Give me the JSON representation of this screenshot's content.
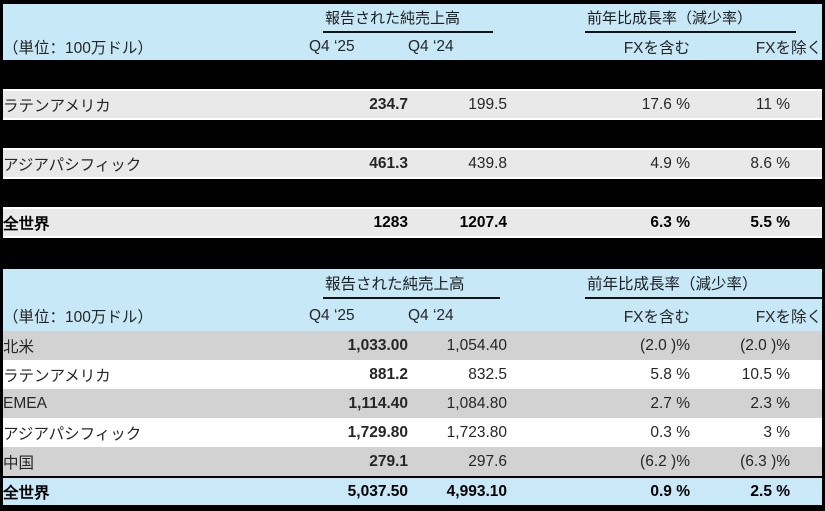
{
  "colors": {
    "background": "#000000",
    "header_bg": "#c6e8f7",
    "table1_row_bg": "#e9e9e9",
    "table2_row_gray": "#d2d2d2",
    "table2_row_white": "#ffffff",
    "total_row_bg": "#c9e9f8",
    "text_normal": "#262626",
    "text_bold": "#000000"
  },
  "table1": {
    "unit_label": "（単位：100万ドル）",
    "sales_group_label": "報告された純売上高",
    "growth_group_label": "前年比成長率（減少率）",
    "columns": {
      "q4_25": "Q4 ‘25",
      "q4_24": "Q4 ‘24",
      "fx_incl": "FXを含む",
      "fx_excl": "FXを除く"
    },
    "rows": [
      {
        "label": "ラテンアメリカ",
        "q4_25": "234.7",
        "q4_24": "199.5",
        "fx_incl": "17.6 %",
        "fx_excl": "11 %"
      },
      {
        "label": "アジアパシフィック",
        "q4_25": "461.3",
        "q4_24": "439.8",
        "fx_incl": "4.9 %",
        "fx_excl": "8.6 %"
      },
      {
        "label": "全世界",
        "q4_25": "1283",
        "q4_24": "1207.4",
        "fx_incl": "6.3 %",
        "fx_excl": "5.5 %"
      }
    ]
  },
  "table2": {
    "unit_label": "（単位：100万ドル）",
    "sales_group_label": "報告された純売上高",
    "growth_group_label": "前年比成長率（減少率）",
    "columns": {
      "q4_25": "Q4 ‘25",
      "q4_24": "Q4 ‘24",
      "fx_incl": "FXを含む",
      "fx_excl": "FXを除く"
    },
    "rows": [
      {
        "label": "北米",
        "q4_25": "1,033.00",
        "q4_24": "1,054.40",
        "fx_incl": "(2.0 )%",
        "fx_excl": "(2.0 )%"
      },
      {
        "label": "ラテンアメリカ",
        "q4_25": "881.2",
        "q4_24": "832.5",
        "fx_incl": "5.8 %",
        "fx_excl": "10.5 %"
      },
      {
        "label": "EMEA",
        "q4_25": "1,114.40",
        "q4_24": "1,084.80",
        "fx_incl": "2.7 %",
        "fx_excl": "2.3 %"
      },
      {
        "label": "アジアパシフィック",
        "q4_25": "1,729.80",
        "q4_24": "1,723.80",
        "fx_incl": "0.3 %",
        "fx_excl": "3 %"
      },
      {
        "label": "中国",
        "q4_25": "279.1",
        "q4_24": "297.6",
        "fx_incl": "(6.2 )%",
        "fx_excl": "(6.3 )%"
      },
      {
        "label": "全世界",
        "q4_25": "5,037.50",
        "q4_24": "4,993.10",
        "fx_incl": "0.9 %",
        "fx_excl": "2.5 %"
      }
    ]
  }
}
